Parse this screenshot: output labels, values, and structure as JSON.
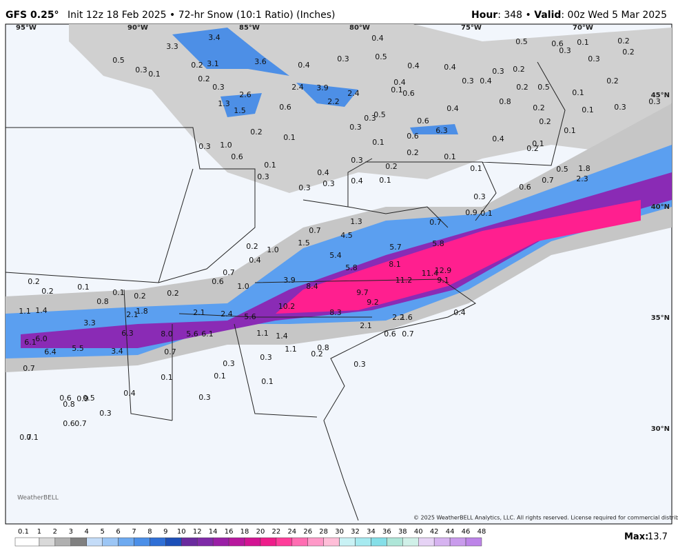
{
  "header": {
    "model": "GFS 0.25°",
    "info": "Init 12z 18 Feb 2025 • 72-hr Snow (10:1 Ratio) (Inches)",
    "hour_label": "Hour",
    "hour_value": ": 348 • ",
    "valid_label": "Valid",
    "valid_value": ": 00z Wed 5 Mar 2025"
  },
  "map": {
    "lon_labels": [
      "95°W",
      "90°W",
      "85°W",
      "80°W",
      "75°W",
      "70°W"
    ],
    "lat_labels": [
      "45°N",
      "40°N",
      "35°N",
      "30°N"
    ],
    "snow_labels": [
      "3.4",
      "3.3",
      "0.5",
      "0.3",
      "0.1",
      "0.2",
      "3.1",
      "3.6",
      "0.4",
      "0.3",
      "0.5",
      "0.4",
      "0.4",
      "0.4",
      "0.5",
      "0.6",
      "0.3",
      "0.1",
      "0.2",
      "0.2",
      "0.3",
      "0.3",
      "0.2",
      "0.3",
      "0.4",
      "0.2",
      "0.5",
      "0.2",
      "0.1",
      "0.1",
      "0.3",
      "0.3",
      "0.2",
      "0.3",
      "1.3",
      "2.6",
      "1.5",
      "2.4",
      "3.9",
      "2.4",
      "0.4",
      "0.1",
      "0.6",
      "2.2",
      "0.6",
      "0.5",
      "0.3",
      "0.3",
      "0.4",
      "0.8",
      "0.2",
      "0.2",
      "0.1",
      "0.6",
      "6.3",
      "0.6",
      "0.4",
      "0.2",
      "0.1",
      "0.3",
      "1.0",
      "0.6",
      "0.1",
      "0.2",
      "0.1",
      "0.2",
      "0.1",
      "0.1",
      "0.3",
      "0.3",
      "0.2",
      "0.4",
      "0.3",
      "0.4",
      "0.1",
      "0.3",
      "0.1",
      "0.5",
      "1.8",
      "2.3",
      "0.6",
      "0.7",
      "0.3",
      "0.9",
      "0.1",
      "1.3",
      "0.7",
      "4.5",
      "0.7",
      "5.8",
      "1.5",
      "5.7",
      "1.0",
      "0.2",
      "0.4",
      "5.4",
      "8.1",
      "5.8",
      "11.4",
      "12.9",
      "0.7",
      "11.2",
      "9.1",
      "0.6",
      "1.0",
      "3.9",
      "8.4",
      "9.7",
      "9.2",
      "10.2",
      "8.3",
      "0.4",
      "5.6",
      "2.4",
      "2.1",
      "2.2",
      "1.6",
      "2.1",
      "0.2",
      "0.2",
      "0.1",
      "0.1",
      "0.2",
      "0.2",
      "0.8",
      "1.1",
      "1.4",
      "2.1",
      "1.8",
      "3.3",
      "6.3",
      "8.0",
      "5.6",
      "6.1",
      "1.1",
      "1.4",
      "0.6",
      "0.7",
      "6.1",
      "6.0",
      "5.5",
      "3.4",
      "0.7",
      "0.8",
      "1.1",
      "0.2",
      "6.4",
      "0.3",
      "0.3",
      "0.3",
      "0.7",
      "0.1",
      "0.1",
      "0.1",
      "0.4",
      "0.6",
      "0.9",
      "0.5",
      "0.8",
      "0.3",
      "0.3",
      "0.6",
      "0.7",
      "0.7",
      "0.1"
    ],
    "copyright": "© 2025 WeatherBELL Analytics, LLC. All rights reserved. License required for commercial distribution.",
    "logo": "WeatherBELL"
  },
  "legend": {
    "levels": [
      "0.1",
      "1",
      "2",
      "3",
      "4",
      "5",
      "6",
      "7",
      "8",
      "9",
      "10",
      "12",
      "14",
      "16",
      "18",
      "20",
      "22",
      "24",
      "26",
      "28",
      "30",
      "32",
      "34",
      "36",
      "38",
      "40",
      "42",
      "44",
      "46",
      "48"
    ],
    "max_label": "Max:",
    "max_value": "13.7"
  }
}
